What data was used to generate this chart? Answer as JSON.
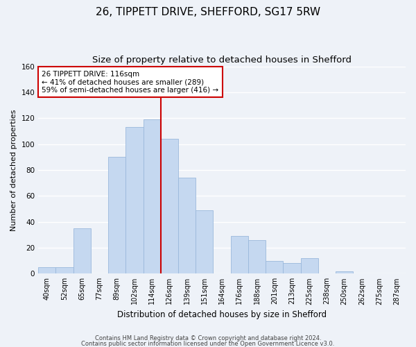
{
  "title": "26, TIPPETT DRIVE, SHEFFORD, SG17 5RW",
  "subtitle": "Size of property relative to detached houses in Shefford",
  "xlabel": "Distribution of detached houses by size in Shefford",
  "ylabel": "Number of detached properties",
  "bar_labels": [
    "40sqm",
    "52sqm",
    "65sqm",
    "77sqm",
    "89sqm",
    "102sqm",
    "114sqm",
    "126sqm",
    "139sqm",
    "151sqm",
    "164sqm",
    "176sqm",
    "188sqm",
    "201sqm",
    "213sqm",
    "225sqm",
    "238sqm",
    "250sqm",
    "262sqm",
    "275sqm",
    "287sqm"
  ],
  "bar_values": [
    5,
    5,
    35,
    0,
    90,
    113,
    119,
    104,
    74,
    49,
    0,
    29,
    26,
    10,
    8,
    12,
    0,
    2,
    0,
    0,
    0
  ],
  "bar_color": "#c5d8f0",
  "bar_edge_color": "#9ab8dc",
  "vline_color": "#cc0000",
  "ylim": [
    0,
    160
  ],
  "yticks": [
    0,
    20,
    40,
    60,
    80,
    100,
    120,
    140,
    160
  ],
  "annotation_title": "26 TIPPETT DRIVE: 116sqm",
  "annotation_line1": "← 41% of detached houses are smaller (289)",
  "annotation_line2": "59% of semi-detached houses are larger (416) →",
  "annotation_box_color": "#ffffff",
  "annotation_box_edge": "#cc0000",
  "footer1": "Contains HM Land Registry data © Crown copyright and database right 2024.",
  "footer2": "Contains public sector information licensed under the Open Government Licence v3.0.",
  "background_color": "#eef2f8",
  "grid_color": "#ffffff",
  "title_fontsize": 11,
  "subtitle_fontsize": 9.5,
  "vline_bar_index": 6
}
